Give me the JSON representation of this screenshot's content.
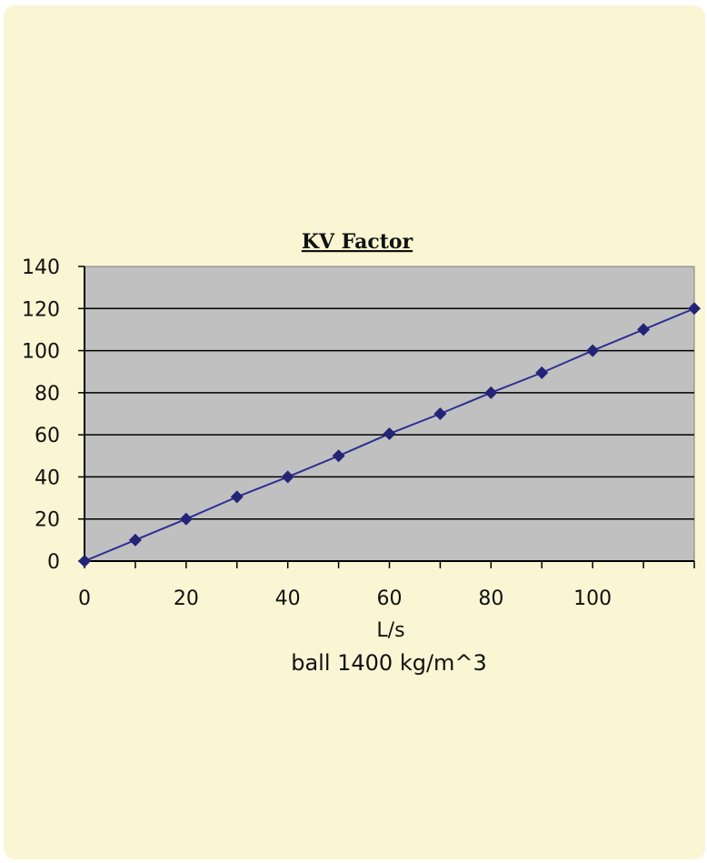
{
  "chart_data": {
    "type": "line",
    "title": "KV Factor",
    "xlabel": "L/s",
    "subtitle": "ball 1400 kg/m^3",
    "ylabel": "",
    "x": [
      0,
      10,
      20,
      30,
      40,
      50,
      60,
      70,
      80,
      90,
      100,
      110,
      120
    ],
    "series": [
      {
        "values": [
          0,
          10,
          20,
          30.5,
          40,
          50,
          60.5,
          70,
          80,
          89.5,
          100,
          110,
          120
        ]
      }
    ],
    "xlim": [
      0,
      120
    ],
    "ylim": [
      0,
      140
    ],
    "x_ticks": [
      "0",
      "20",
      "40",
      "60",
      "80",
      "100"
    ],
    "y_ticks": [
      "0",
      "20",
      "40",
      "60",
      "80",
      "100",
      "120",
      "140"
    ],
    "grid": "horizontal",
    "legend": "none",
    "colors": {
      "panel_background": "#faf6d4",
      "plot_background": "#c0c0c0",
      "series_line": "#2e2e94",
      "series_marker": "#232378",
      "gridline": "#000000"
    },
    "marker": "diamond"
  }
}
